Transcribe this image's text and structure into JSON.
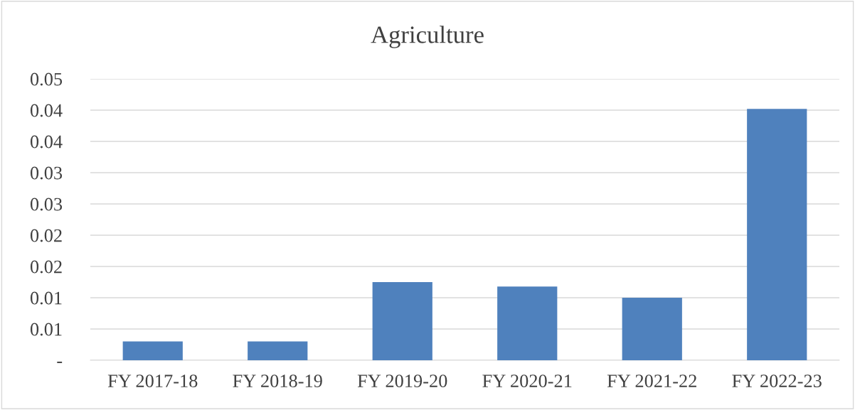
{
  "chart_data": {
    "type": "bar",
    "title": "Agriculture",
    "categories": [
      "FY 2017-18",
      "FY 2018-19",
      "FY 2019-20",
      "FY 2020-21",
      "FY 2021-22",
      "FY 2022-23"
    ],
    "values": [
      0.003,
      0.003,
      0.0125,
      0.0118,
      0.01,
      0.0402
    ],
    "color": "#4f81bd",
    "ylim": [
      0,
      0.045
    ],
    "yticks": [
      {
        "value": 0,
        "label": "-"
      },
      {
        "value": 0.005,
        "label": "0.01"
      },
      {
        "value": 0.01,
        "label": "0.01"
      },
      {
        "value": 0.015,
        "label": "0.02"
      },
      {
        "value": 0.02,
        "label": "0.02"
      },
      {
        "value": 0.025,
        "label": "0.03"
      },
      {
        "value": 0.03,
        "label": "0.03"
      },
      {
        "value": 0.035,
        "label": "0.04"
      },
      {
        "value": 0.04,
        "label": "0.04"
      },
      {
        "value": 0.045,
        "label": "0.05"
      }
    ],
    "grid": "y",
    "legend": false
  }
}
